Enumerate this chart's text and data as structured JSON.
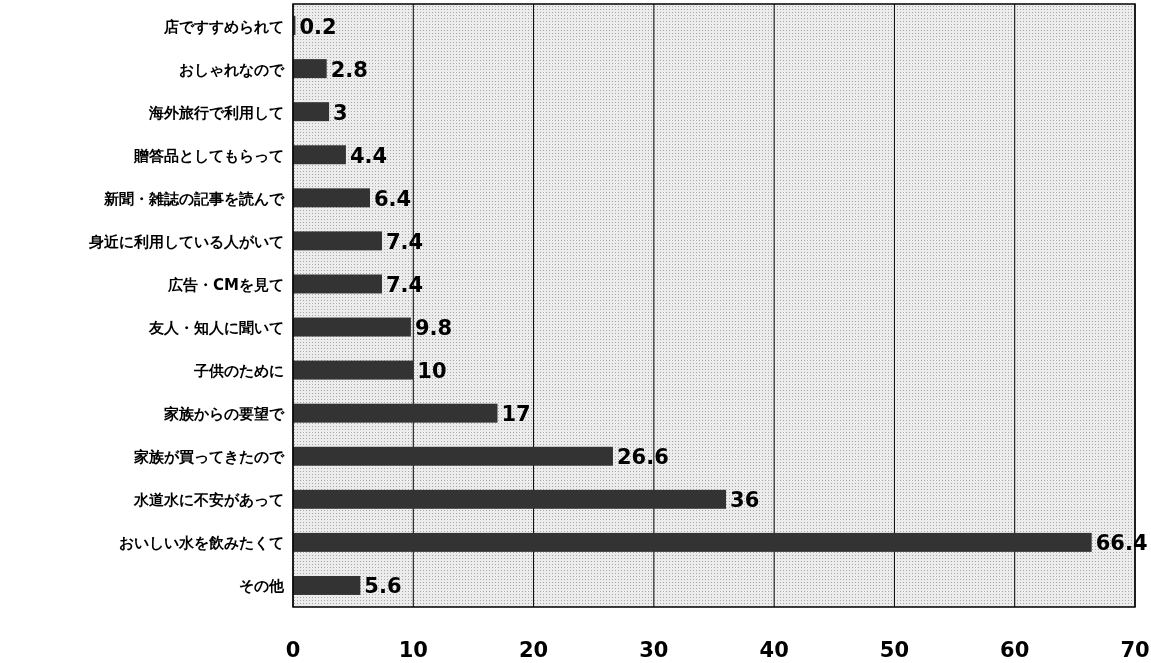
{
  "chart_data": {
    "type": "bar",
    "orientation": "horizontal",
    "categories": [
      "店ですすめられて",
      "おしゃれなので",
      "海外旅行で利用して",
      "贈答品としてもらって",
      "新聞・雑誌の記事を読んで",
      "身近に利用している人がいて",
      "広告・CMを見て",
      "友人・知人に聞いて",
      "子供のために",
      "家族からの要望で",
      "家族が買ってきたので",
      "水道水に不安があって",
      "おいしい水を飲みたくて",
      "その他"
    ],
    "values": [
      0.2,
      2.8,
      3,
      4.4,
      6.4,
      7.4,
      7.4,
      9.8,
      10,
      17,
      26.6,
      36,
      66.4,
      5.6
    ],
    "color": "#333333",
    "xlim": [
      0,
      70
    ],
    "xticks": [
      0,
      10,
      20,
      30,
      40,
      50,
      60,
      70
    ],
    "grid": "x",
    "data_labels": true
  }
}
